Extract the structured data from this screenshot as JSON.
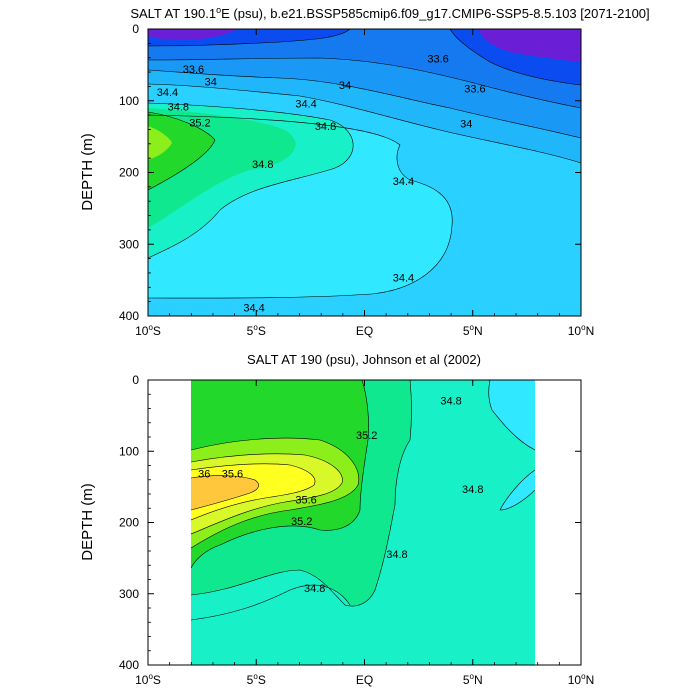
{
  "chart_data": [
    {
      "type": "contour",
      "title_main": "SALT AT 190.1",
      "title_sup": "o",
      "title_rest": "E (psu), b.e21.BSSP585cmip6.f09_g17.CMIP6-SSP5-8.5.103 [2071-2100]",
      "ylabel": "DEPTH (m)",
      "xlim": [
        -10,
        10
      ],
      "ylim": [
        400,
        0
      ],
      "xticks": [
        {
          "value": -10,
          "num": "10",
          "deg": "o",
          "hemi": "S"
        },
        {
          "value": -5,
          "num": "5",
          "deg": "o",
          "hemi": "S"
        },
        {
          "value": 0,
          "num": "EQ",
          "deg": "",
          "hemi": ""
        },
        {
          "value": 5,
          "num": "5",
          "deg": "o",
          "hemi": "N"
        },
        {
          "value": 10,
          "num": "10",
          "deg": "o",
          "hemi": "N"
        }
      ],
      "yticks": [
        0,
        100,
        200,
        300,
        400
      ],
      "level_colors": [
        {
          "level": 33.4,
          "color": "#6a1fd6"
        },
        {
          "level": 33.6,
          "color": "#0a4cf0"
        },
        {
          "level": 33.8,
          "color": "#1579f0"
        },
        {
          "level": 34.0,
          "color": "#1a98f6"
        },
        {
          "level": 34.2,
          "color": "#20b6fa"
        },
        {
          "level": 34.4,
          "color": "#2ad0ff"
        },
        {
          "level": 34.6,
          "color": "#30e8ff"
        },
        {
          "level": 34.8,
          "color": "#18f0c8"
        },
        {
          "level": 35.0,
          "color": "#10e890"
        },
        {
          "level": 35.2,
          "color": "#22d82a"
        }
      ],
      "contour_labels": [
        {
          "x": -7.9,
          "y": 56,
          "text": "33.6"
        },
        {
          "x": 3.4,
          "y": 41,
          "text": "33.6"
        },
        {
          "x": -7.1,
          "y": 73,
          "text": "34"
        },
        {
          "x": -0.9,
          "y": 78,
          "text": "34"
        },
        {
          "x": 5.1,
          "y": 83,
          "text": "33.6"
        },
        {
          "x": -9.1,
          "y": 88,
          "text": "34.4"
        },
        {
          "x": -8.6,
          "y": 108,
          "text": "34.8"
        },
        {
          "x": -2.7,
          "y": 104,
          "text": "34.4"
        },
        {
          "x": 4.7,
          "y": 132,
          "text": "34"
        },
        {
          "x": -7.6,
          "y": 130,
          "text": "35.2"
        },
        {
          "x": -1.8,
          "y": 135,
          "text": "34.8"
        },
        {
          "x": 1.8,
          "y": 212,
          "text": "34.4"
        },
        {
          "x": -4.7,
          "y": 188,
          "text": "34.8"
        },
        {
          "x": 1.8,
          "y": 346,
          "text": "34.4"
        },
        {
          "x": -5.1,
          "y": 388,
          "text": "34.4"
        }
      ]
    },
    {
      "type": "contour",
      "title_main": "SALT AT 190 (psu), Johnson et al (2002)",
      "ylabel": "DEPTH (m)",
      "xlim": [
        -10,
        10
      ],
      "ylim": [
        400,
        0
      ],
      "data_xrange": [
        -8,
        8
      ],
      "xticks": [
        {
          "value": -10,
          "num": "10",
          "deg": "o",
          "hemi": "S"
        },
        {
          "value": -5,
          "num": "5",
          "deg": "o",
          "hemi": "S"
        },
        {
          "value": 0,
          "num": "EQ",
          "deg": "",
          "hemi": ""
        },
        {
          "value": 5,
          "num": "5",
          "deg": "o",
          "hemi": "N"
        },
        {
          "value": 10,
          "num": "10",
          "deg": "o",
          "hemi": "N"
        }
      ],
      "yticks": [
        0,
        100,
        200,
        300,
        400
      ],
      "level_colors": [
        {
          "level": 34.6,
          "color": "#30e8ff"
        },
        {
          "level": 34.8,
          "color": "#18f0c8"
        },
        {
          "level": 35.0,
          "color": "#10e890"
        },
        {
          "level": 35.2,
          "color": "#22d82a"
        },
        {
          "level": 35.4,
          "color": "#8cee1a"
        },
        {
          "level": 35.6,
          "color": "#d8f82a"
        },
        {
          "level": 35.8,
          "color": "#ffff20"
        },
        {
          "level": 36.0,
          "color": "#ffc83c"
        }
      ],
      "contour_labels": [
        {
          "x": 4.0,
          "y": 29,
          "text": "34.8"
        },
        {
          "x": 0.1,
          "y": 77,
          "text": "35.2"
        },
        {
          "x": -6.1,
          "y": 131,
          "text": "35.6"
        },
        {
          "x": -7.4,
          "y": 131,
          "text": "36"
        },
        {
          "x": -2.7,
          "y": 168,
          "text": "35.6"
        },
        {
          "x": -2.9,
          "y": 198,
          "text": "35.2"
        },
        {
          "x": 5.0,
          "y": 153,
          "text": "34.8"
        },
        {
          "x": 1.5,
          "y": 244,
          "text": "34.8"
        },
        {
          "x": -2.3,
          "y": 292,
          "text": "34.8"
        }
      ]
    }
  ]
}
